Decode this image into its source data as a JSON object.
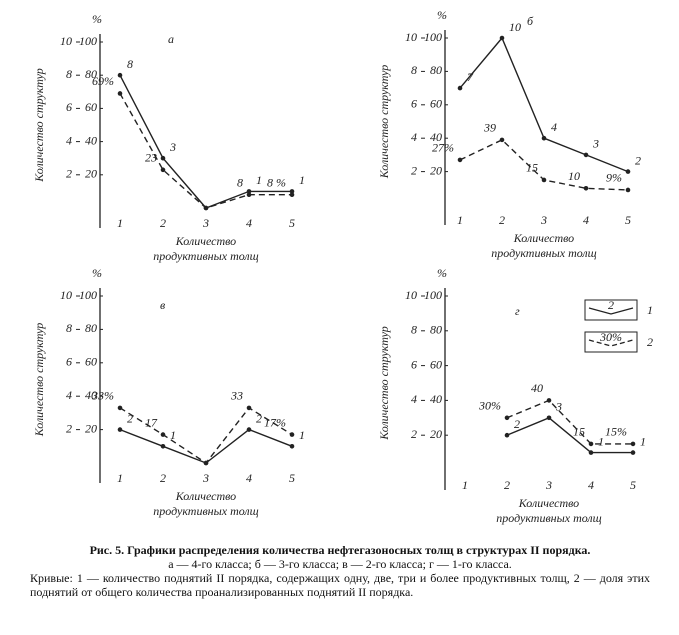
{
  "chart_data": [
    {
      "type": "line",
      "title": "а",
      "ylabel": "Количество структур",
      "y2label": "%",
      "xlabel": [
        "Количество",
        "продуктивных толщ"
      ],
      "categories": [
        "1",
        "2",
        "3",
        "4",
        "5"
      ],
      "ylim": [
        0,
        10
      ],
      "yticks": [
        2,
        4,
        6,
        8,
        10
      ],
      "y2lim": [
        0,
        100
      ],
      "y2ticks": [
        20,
        40,
        60,
        80,
        100
      ],
      "series": [
        {
          "name": "1",
          "color": "#222",
          "style": "solid",
          "values": [
            8,
            3,
            0,
            1,
            1
          ],
          "value_labels": [
            "8",
            "3",
            null,
            "1",
            "1"
          ]
        },
        {
          "name": "2",
          "color": "#222",
          "style": "dashed",
          "axis": "y2",
          "values": [
            69,
            23,
            0,
            8,
            8
          ],
          "value_labels": [
            "69%",
            "23",
            null,
            "8",
            "8 %"
          ]
        }
      ]
    },
    {
      "type": "line",
      "title": "б",
      "ylabel": "Количество структур",
      "y2label": "%",
      "xlabel": [
        "Количество",
        "продуктивных толщ"
      ],
      "categories": [
        "1",
        "2",
        "3",
        "4",
        "5"
      ],
      "ylim": [
        0,
        10
      ],
      "yticks": [
        2,
        4,
        6,
        8,
        10
      ],
      "y2lim": [
        0,
        100
      ],
      "y2ticks": [
        20,
        40,
        60,
        80,
        100
      ],
      "series": [
        {
          "name": "1",
          "color": "#222",
          "style": "solid",
          "values": [
            7,
            10,
            4,
            3,
            2
          ],
          "value_labels": [
            "7",
            "10",
            "4",
            "3",
            "2"
          ]
        },
        {
          "name": "2",
          "color": "#222",
          "style": "dashed",
          "axis": "y2",
          "values": [
            27,
            39,
            15,
            10,
            9
          ],
          "value_labels": [
            "27%",
            "39",
            "15",
            "10",
            "9%"
          ]
        }
      ]
    },
    {
      "type": "line",
      "title": "в",
      "ylabel": "Количество структур",
      "y2label": "%",
      "xlabel": [
        "Количество",
        "продуктивных толщ"
      ],
      "categories": [
        "1",
        "2",
        "3",
        "4",
        "5"
      ],
      "ylim": [
        0,
        10
      ],
      "yticks": [
        2,
        4,
        6,
        8,
        10
      ],
      "y2lim": [
        0,
        100
      ],
      "y2ticks": [
        20,
        40,
        60,
        80,
        100
      ],
      "series": [
        {
          "name": "1",
          "color": "#222",
          "style": "solid",
          "values": [
            2,
            1,
            0,
            2,
            1
          ],
          "value_labels": [
            "2",
            "1",
            null,
            "2",
            "1"
          ]
        },
        {
          "name": "2",
          "color": "#222",
          "style": "dashed",
          "axis": "y2",
          "values": [
            33,
            17,
            0,
            33,
            17
          ],
          "value_labels": [
            "33%",
            "17",
            null,
            "33",
            "17%"
          ]
        }
      ]
    },
    {
      "type": "line",
      "title": "г",
      "ylabel": "Количество структур",
      "y2label": "%",
      "xlabel": [
        "Количество",
        "продуктивных толщ"
      ],
      "categories": [
        "1",
        "2",
        "3",
        "4",
        "5"
      ],
      "ylim": [
        0,
        10
      ],
      "yticks": [
        2,
        4,
        6,
        8,
        10
      ],
      "y2lim": [
        0,
        100
      ],
      "y2ticks": [
        20,
        40,
        60,
        80,
        100
      ],
      "legend": true,
      "series": [
        {
          "name": "1",
          "legend_sample": "2",
          "color": "#222",
          "style": "solid",
          "values": [
            null,
            2,
            3,
            1,
            1
          ],
          "value_labels": [
            null,
            "2",
            "3",
            "1",
            "1"
          ]
        },
        {
          "name": "2",
          "legend_sample": "30%",
          "color": "#222",
          "style": "dashed",
          "axis": "y2",
          "values": [
            null,
            30,
            40,
            15,
            15
          ],
          "value_labels": [
            null,
            "30%",
            "40",
            "15",
            "15%"
          ]
        }
      ]
    }
  ],
  "caption": {
    "title": "Рис. 5. Графики распределения количества нефтегазоносных толщ в структурах II порядка.",
    "classes": "а — 4-го класса; б — 3-го класса; в — 2-го класса; г — 1-го класса.",
    "curves": "Кривые: 1 — количество поднятий II порядка, содержащих одну, две, три и более продуктивных толщ, 2 — доля этих поднятий от общего количества проанализированных поднятий II порядка."
  }
}
